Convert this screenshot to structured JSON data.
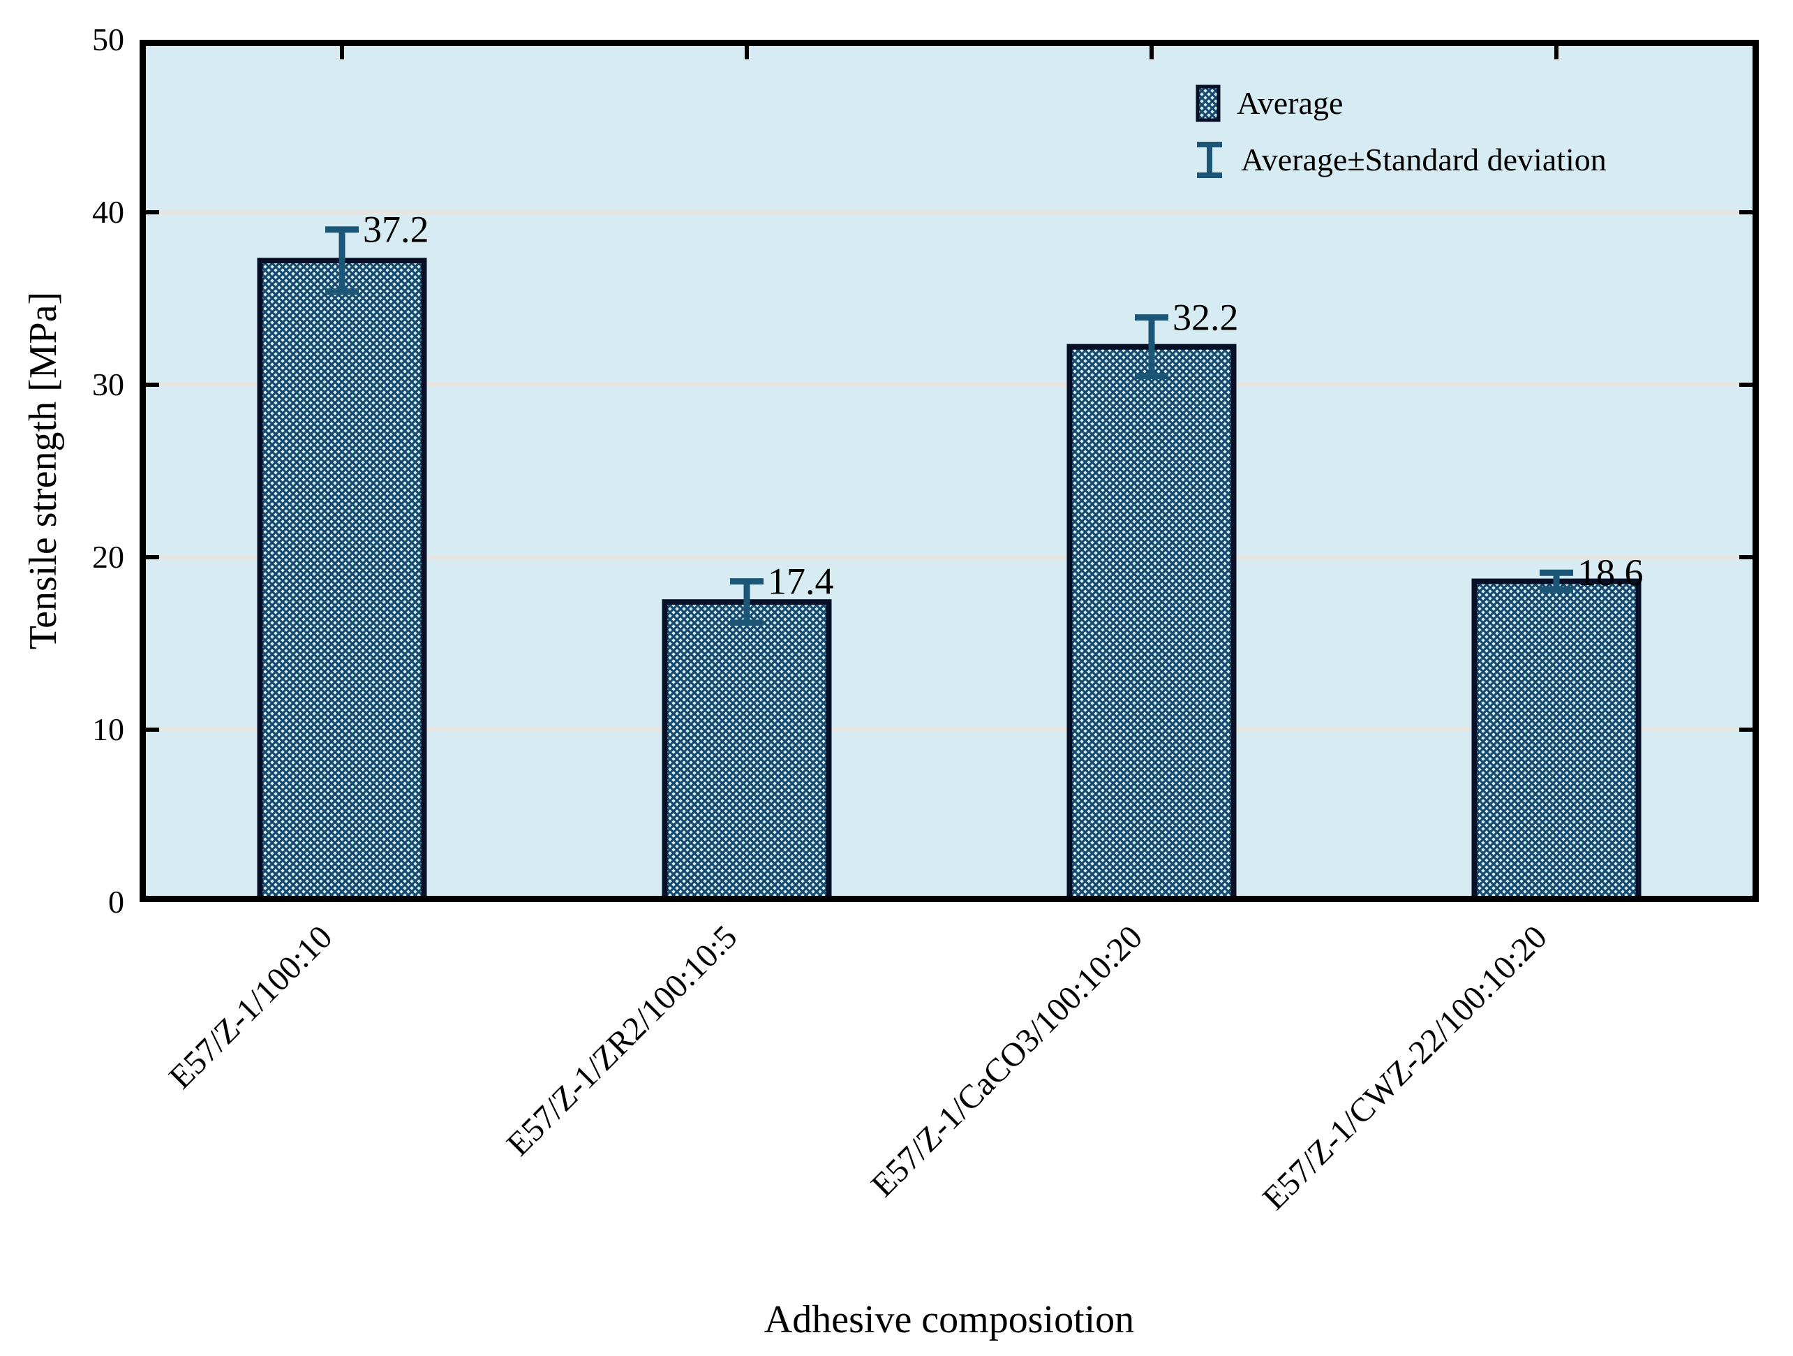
{
  "chart_data": {
    "type": "bar",
    "title": "",
    "xlabel": "Adhesive composiotion",
    "ylabel": "Tensile strength [MPa]",
    "categories": [
      "E57/Z-1/100:10",
      "E57/Z-1/ZR2/100:10:5",
      "E57/Z-1/CaCO3/100:10:20",
      "E57/Z-1/CWZ-22/100:10:20"
    ],
    "values": [
      37.2,
      17.4,
      32.2,
      18.6
    ],
    "std_devs": [
      1.8,
      1.2,
      1.7,
      0.5
    ],
    "value_labels": [
      "37.2",
      "17.4",
      "32.2",
      "18.6"
    ],
    "ylim": [
      0,
      50
    ],
    "yticks": [
      0,
      10,
      20,
      30,
      40,
      50
    ],
    "grid_values": [
      10,
      20,
      30,
      40
    ],
    "grid": "horizontal",
    "legend_position": "top-right-inside",
    "legend": [
      {
        "label": "Average",
        "marker": "hatched-box"
      },
      {
        "label": "Average±Standard deviation",
        "marker": "error-bar"
      }
    ],
    "colors": {
      "plot_background": "#d6ebf2",
      "grid": "#e8e5e1",
      "axis": "#000000",
      "bar_border": "#071027",
      "bar_hatch": "#15496d",
      "bar_hatch_bg": "#d9eef5",
      "error_bar": "#1c5676",
      "text": "#000000"
    }
  }
}
